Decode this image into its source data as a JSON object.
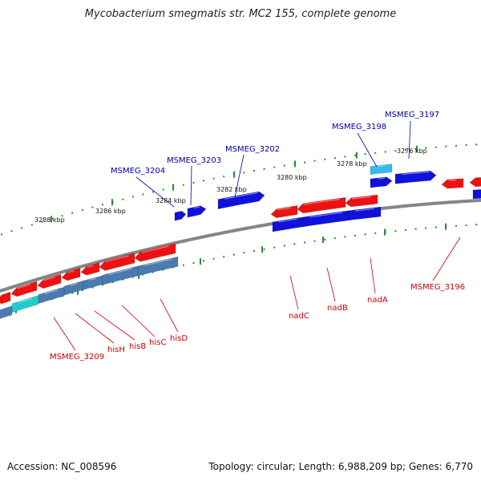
{
  "title": "Mycobacterium smegmatis str. MC2 155, complete genome",
  "footer": {
    "accession": "Accession: NC_008596",
    "stats": "Topology: circular; Length: 6,988,209 bp; Genes: 6,770"
  },
  "colors": {
    "backbone": "#858585",
    "ruler": "#2e8b2e",
    "gene_red": "#ee1111",
    "gene_blue": "#1111dd",
    "gene_steel": "#4a7bb0",
    "gene_cyan": "#22cccc",
    "gene_skyblue": "#33bbee",
    "label_blue": "#0000aa",
    "label_red": "#cc0000"
  },
  "scale_labels": [
    "3276 kbp",
    "3278 kbp",
    "3280 kbp",
    "3282 kbp",
    "3284 kbp",
    "3286 kbp",
    "3288 kbp"
  ],
  "labels_above": [
    "MSMEG_3197",
    "MSMEG_3198",
    "MSMEG_3202",
    "MSMEG_3203",
    "MSMEG_3204"
  ],
  "labels_below": [
    "MSMEG_3196",
    "nadA",
    "nadB",
    "nadC",
    "hisD",
    "hisC",
    "hisB",
    "hisH",
    "MSMEG_3209"
  ]
}
